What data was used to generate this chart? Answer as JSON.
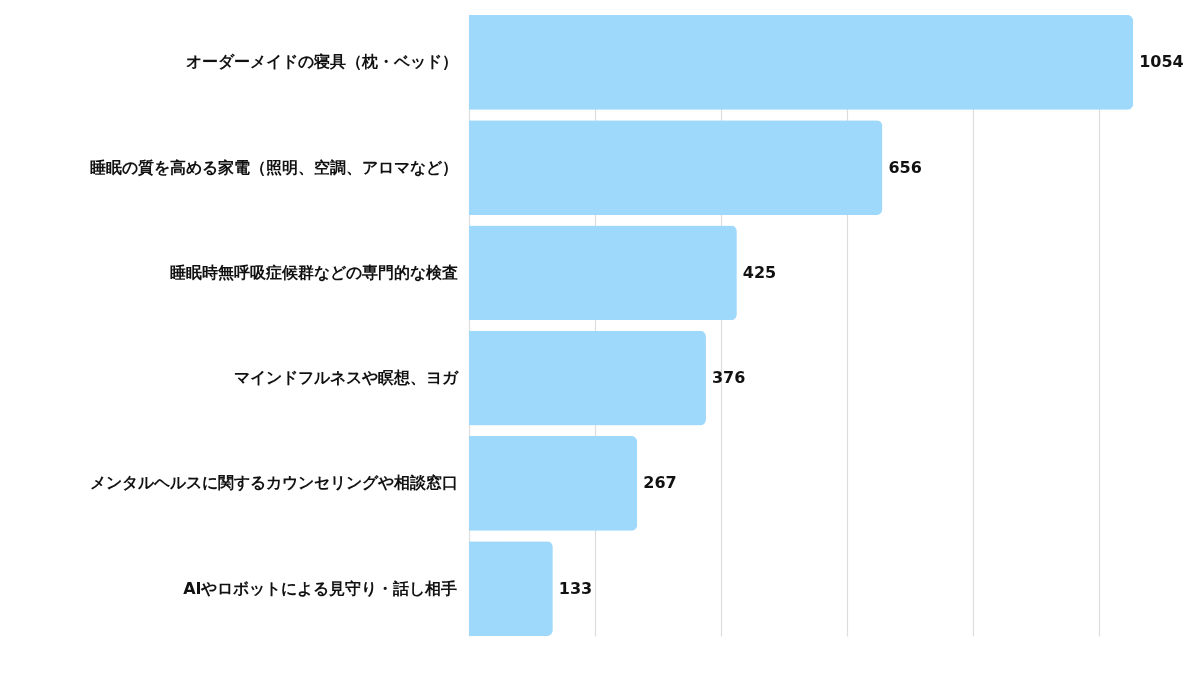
{
  "chart_data": {
    "type": "bar",
    "orientation": "horizontal",
    "categories": [
      "オーダーメイドの寝具（枕・ベッド）",
      "睡眠の質を高める家電（照明、空調、アロマなど）",
      "睡眠時無呼吸症候群などの専門的な検査",
      "マインドフルネスや瞑想、ヨガ",
      "メンタルヘルスに関するカウンセリングや相談窓口",
      "AIやロボットによる見守り・話し相手"
    ],
    "values": [
      1054,
      656,
      425,
      376,
      267,
      133
    ],
    "color": "#9ed8fb",
    "xlim": [
      0,
      1060
    ],
    "xticks": [
      {
        "value": 0,
        "label": null
      },
      {
        "value": 200,
        "label": null
      },
      {
        "value": 400,
        "label": null
      },
      {
        "value": 600,
        "label": null
      },
      {
        "value": 800,
        "label": null
      },
      {
        "value": 1000,
        "label": null
      }
    ],
    "data_labels": true,
    "grid": "x",
    "tick_labels": "y"
  }
}
